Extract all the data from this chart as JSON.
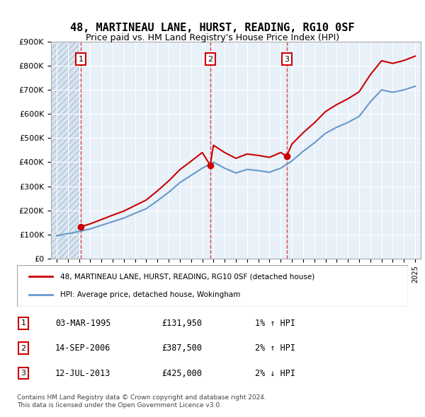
{
  "title": "48, MARTINEAU LANE, HURST, READING, RG10 0SF",
  "subtitle": "Price paid vs. HM Land Registry's House Price Index (HPI)",
  "legend_label_red": "48, MARTINEAU LANE, HURST, READING, RG10 0SF (detached house)",
  "legend_label_blue": "HPI: Average price, detached house, Wokingham",
  "footer1": "Contains HM Land Registry data © Crown copyright and database right 2024.",
  "footer2": "This data is licensed under the Open Government Licence v3.0.",
  "transactions": [
    {
      "num": 1,
      "date": "03-MAR-1995",
      "price": "£131,950",
      "change": "1% ↑ HPI",
      "year": 1995.17
    },
    {
      "num": 2,
      "date": "14-SEP-2006",
      "price": "£387,500",
      "change": "2% ↑ HPI",
      "year": 2006.71
    },
    {
      "num": 3,
      "date": "12-JUL-2013",
      "price": "£425,000",
      "change": "2% ↓ HPI",
      "year": 2013.54
    }
  ],
  "sale_prices": [
    131950,
    387500,
    425000
  ],
  "sale_years": [
    1995.17,
    2006.71,
    2013.54
  ],
  "hpi_years": [
    1993,
    1994,
    1995,
    1996,
    1997,
    1998,
    1999,
    2000,
    2001,
    2002,
    2003,
    2004,
    2005,
    2006,
    2007,
    2008,
    2009,
    2010,
    2011,
    2012,
    2013,
    2014,
    2015,
    2016,
    2017,
    2018,
    2019,
    2020,
    2021,
    2022,
    2023,
    2024,
    2025
  ],
  "hpi_values": [
    95000,
    103000,
    112000,
    123000,
    138000,
    153000,
    168000,
    188000,
    207000,
    240000,
    275000,
    315000,
    345000,
    375000,
    400000,
    375000,
    355000,
    370000,
    365000,
    358000,
    375000,
    405000,
    445000,
    480000,
    520000,
    545000,
    565000,
    590000,
    650000,
    700000,
    690000,
    700000,
    715000
  ],
  "red_line_years": [
    1995,
    1995.17,
    1996,
    1997,
    1998,
    1999,
    2000,
    2001,
    2002,
    2003,
    2004,
    2005,
    2006,
    2006.71,
    2007,
    2008,
    2009,
    2010,
    2011,
    2012,
    2013,
    2013.54,
    2014,
    2015,
    2016,
    2017,
    2018,
    2019,
    2020,
    2021,
    2022,
    2023,
    2024,
    2025
  ],
  "red_line_values": [
    131950,
    131950,
    144000,
    162000,
    180000,
    197000,
    220000,
    243000,
    281000,
    322000,
    369000,
    404000,
    440000,
    387500,
    470000,
    440000,
    416000,
    434000,
    428000,
    420000,
    440000,
    425000,
    475000,
    522000,
    563000,
    610000,
    639000,
    663000,
    692000,
    763000,
    821000,
    810000,
    822000,
    840000
  ],
  "ylim": [
    0,
    900000
  ],
  "yticks": [
    0,
    100000,
    200000,
    300000,
    400000,
    500000,
    600000,
    700000,
    800000,
    900000
  ],
  "ytick_labels": [
    "£0",
    "£100K",
    "£200K",
    "£300K",
    "£400K",
    "£500K",
    "£600K",
    "£700K",
    "£800K",
    "£900K"
  ],
  "xlim_start": 1992.5,
  "xlim_end": 2025.5,
  "background_hatch": "#d8e4f0",
  "background_plot": "#e8f0f8",
  "grid_color": "#ffffff",
  "red_color": "#cc0000",
  "blue_color": "#6699cc"
}
